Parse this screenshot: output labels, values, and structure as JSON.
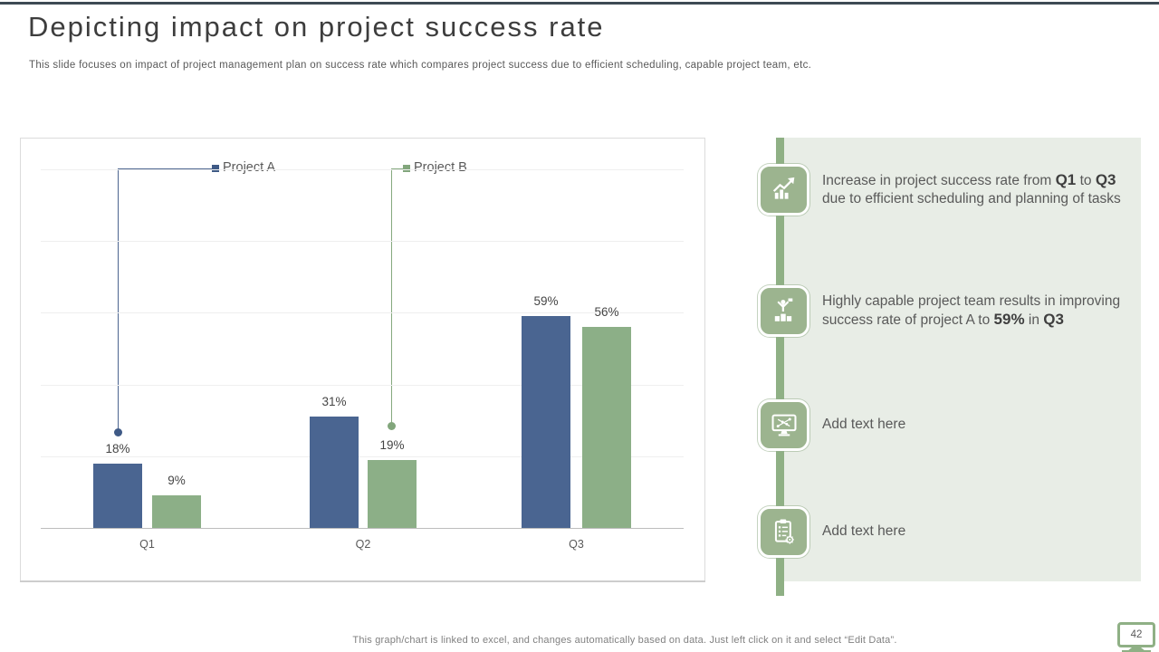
{
  "slide": {
    "title": "Depicting impact on project success rate",
    "subtitle": "This slide focuses on impact of project management plan on success rate which compares project success due to efficient scheduling, capable project team, etc.",
    "footer": "This graph/chart is linked to excel, and changes automatically based on data. Just left click on it and select “Edit Data”.",
    "page_number": "42"
  },
  "colors": {
    "accent_blue": "#4A6591",
    "accent_green": "#8CAF87",
    "panel_bg": "#E8EDE6",
    "divider_green": "#8FB085",
    "icon_bg": "#9CB48F",
    "top_line": "#3D4A54"
  },
  "chart_data": {
    "type": "bar",
    "categories": [
      "Q1",
      "Q2",
      "Q3"
    ],
    "series": [
      {
        "name": "Project A",
        "color": "#4A6591",
        "values": [
          18,
          31,
          59
        ]
      },
      {
        "name": "Project B",
        "color": "#8CAF87",
        "values": [
          9,
          19,
          56
        ]
      }
    ],
    "value_labels": [
      [
        "18%",
        "31%",
        "59%"
      ],
      [
        "9%",
        "19%",
        "56%"
      ]
    ],
    "title": "",
    "xlabel": "",
    "ylabel": "",
    "ylim": [
      0,
      100
    ],
    "gridline_step": 20,
    "grid": true,
    "legend_position": "top-callouts-with-connector-lines"
  },
  "panel": {
    "items": [
      {
        "icon": "growth-chart-icon",
        "segments": [
          {
            "t": "Increase in project success rate from "
          },
          {
            "t": "Q1",
            "b": true
          },
          {
            "t": " to "
          },
          {
            "t": "Q3",
            "b": true
          },
          {
            "br": true
          },
          {
            "t": "due to efficient scheduling and planning of tasks"
          }
        ]
      },
      {
        "icon": "winner-podium-icon",
        "segments": [
          {
            "t": "Highly capable project team results in improving"
          },
          {
            "br": true
          },
          {
            "t": "success rate of project A to "
          },
          {
            "t": "59%",
            "b": true
          },
          {
            "t": " in "
          },
          {
            "t": "Q3",
            "b": true
          }
        ]
      },
      {
        "icon": "monitor-scatter-icon",
        "segments": [
          {
            "t": "Add text here"
          }
        ]
      },
      {
        "icon": "clipboard-checklist-icon",
        "segments": [
          {
            "t": "Add text here"
          }
        ]
      }
    ]
  }
}
